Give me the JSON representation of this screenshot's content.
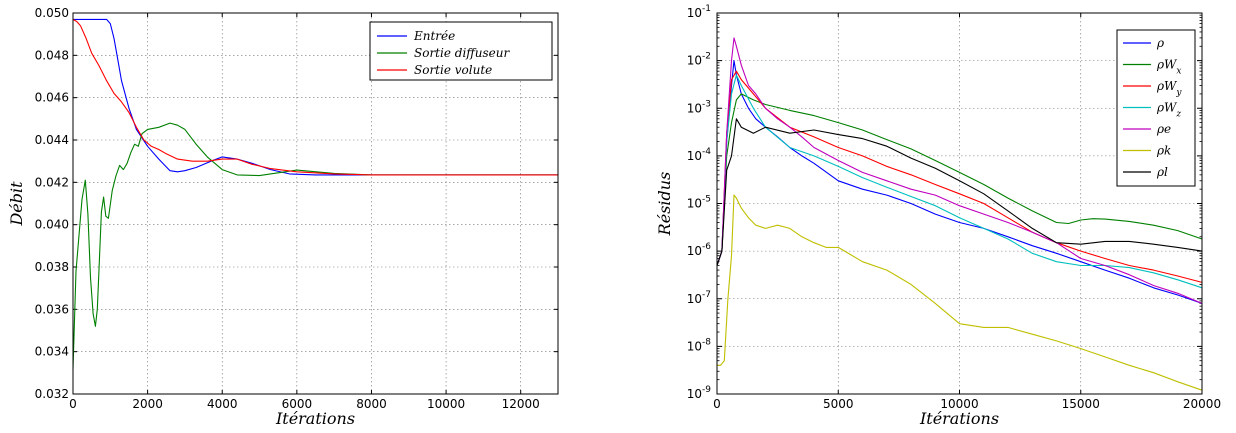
{
  "chart_data": [
    {
      "type": "line",
      "title": "",
      "xlabel": "Itérations",
      "ylabel": "Débit",
      "xlim": [
        0,
        13000
      ],
      "ylim": [
        0.032,
        0.05
      ],
      "xticks": [
        "0",
        "2000",
        "4000",
        "6000",
        "8000",
        "10000",
        "12000"
      ],
      "yticks": [
        "0.032",
        "0.034",
        "0.036",
        "0.038",
        "0.040",
        "0.042",
        "0.044",
        "0.046",
        "0.048",
        "0.050"
      ],
      "grid": true,
      "legend_position": "top-right",
      "series": [
        {
          "name": "Entrée",
          "color": "#0000ff",
          "x": [
            0,
            600,
            900,
            1000,
            1100,
            1200,
            1300,
            1500,
            1700,
            2000,
            2300,
            2600,
            2800,
            3000,
            3300,
            3700,
            4000,
            4400,
            4800,
            5300,
            5800,
            6500,
            8000,
            10000,
            13000
          ],
          "y": [
            0.0497,
            0.0497,
            0.0497,
            0.0495,
            0.0488,
            0.0478,
            0.0468,
            0.0455,
            0.0445,
            0.0437,
            0.0431,
            0.04255,
            0.0425,
            0.04255,
            0.0427,
            0.043,
            0.0432,
            0.0431,
            0.0429,
            0.0426,
            0.0424,
            0.04235,
            0.04235,
            0.04235,
            0.04235
          ]
        },
        {
          "name": "Sortie diffuseur",
          "color": "#008000",
          "x": [
            0,
            80,
            160,
            240,
            330,
            400,
            470,
            540,
            600,
            650,
            700,
            760,
            820,
            880,
            950,
            1050,
            1150,
            1250,
            1350,
            1450,
            1550,
            1650,
            1750,
            1850,
            2000,
            2300,
            2600,
            2800,
            3000,
            3300,
            3600,
            4000,
            4400,
            5000,
            6000,
            7000,
            8000,
            10000,
            13000
          ],
          "y": [
            0.0332,
            0.0378,
            0.0395,
            0.0412,
            0.0421,
            0.0405,
            0.0375,
            0.0358,
            0.0352,
            0.036,
            0.038,
            0.0406,
            0.0413,
            0.0404,
            0.0403,
            0.0416,
            0.0423,
            0.0428,
            0.0426,
            0.0429,
            0.0434,
            0.0438,
            0.0437,
            0.0443,
            0.0445,
            0.0446,
            0.0448,
            0.0447,
            0.0445,
            0.0438,
            0.0432,
            0.0426,
            0.04235,
            0.04232,
            0.04258,
            0.04242,
            0.04235,
            0.04235,
            0.04235
          ]
        },
        {
          "name": "Sortie volute",
          "color": "#ff0000",
          "x": [
            0,
            100,
            200,
            350,
            500,
            700,
            900,
            1100,
            1300,
            1500,
            1700,
            1900,
            2100,
            2300,
            2500,
            2800,
            3200,
            3600,
            4000,
            4400,
            4800,
            5300,
            6000,
            7000,
            8000,
            10000,
            13000
          ],
          "y": [
            0.0497,
            0.0496,
            0.0494,
            0.0488,
            0.0481,
            0.0475,
            0.0468,
            0.0462,
            0.0458,
            0.0453,
            0.0446,
            0.044,
            0.0437,
            0.04355,
            0.04335,
            0.0431,
            0.043,
            0.043,
            0.0431,
            0.0431,
            0.04285,
            0.04265,
            0.0425,
            0.0424,
            0.04235,
            0.04235,
            0.04235
          ]
        }
      ]
    },
    {
      "type": "line",
      "title": "",
      "xlabel": "Itérations",
      "ylabel": "Résidus",
      "xscale": "linear",
      "yscale": "log",
      "xlim": [
        0,
        20000
      ],
      "ylim": [
        1e-09,
        0.1
      ],
      "xticks": [
        "0",
        "5000",
        "10000",
        "15000",
        "20000"
      ],
      "ytick_exponents": [
        "-9",
        "-8",
        "-7",
        "-6",
        "-5",
        "-4",
        "-3",
        "-2",
        "-1"
      ],
      "ytick_base": "10",
      "grid": true,
      "legend_position": "top-right",
      "series": [
        {
          "name": "ρ",
          "color": "#0000ff",
          "x": [
            0,
            200,
            400,
            600,
            700,
            800,
            1000,
            1300,
            1600,
            2000,
            2500,
            3000,
            3500,
            4000,
            5000,
            6000,
            7000,
            8000,
            9000,
            10000,
            11000,
            12000,
            13000,
            14000,
            15000,
            16000,
            17000,
            18000,
            19000,
            20000
          ],
          "y": [
            5e-07,
            1e-06,
            0.0002,
            0.003,
            0.01,
            0.005,
            0.002,
            0.001,
            0.0006,
            0.0004,
            0.00025,
            0.00015,
            0.0001,
            7e-05,
            3e-05,
            2e-05,
            1.5e-05,
            1e-05,
            6e-06,
            4e-06,
            3e-06,
            2e-06,
            1.3e-06,
            9e-07,
            6e-07,
            4e-07,
            2.7e-07,
            1.7e-07,
            1.2e-07,
            8e-08
          ]
        },
        {
          "name": "ρW_x",
          "color": "#008000",
          "x": [
            0,
            200,
            400,
            600,
            800,
            1000,
            1500,
            2000,
            3000,
            4000,
            5000,
            6000,
            7000,
            8000,
            9000,
            10000,
            11000,
            12000,
            13000,
            14000,
            14500,
            15000,
            15500,
            16000,
            17000,
            18000,
            19000,
            20000
          ],
          "y": [
            5e-07,
            1e-06,
            0.0001,
            0.0005,
            0.0015,
            0.002,
            0.0015,
            0.0012,
            0.0009,
            0.0007,
            0.0005,
            0.00035,
            0.00022,
            0.00014,
            8e-05,
            4.5e-05,
            2.5e-05,
            1.3e-05,
            7e-06,
            4e-06,
            3.8e-06,
            4.5e-06,
            4.8e-06,
            4.7e-06,
            4.2e-06,
            3.5e-06,
            2.7e-06,
            1.8e-06
          ]
        },
        {
          "name": "ρW_y",
          "color": "#ff0000",
          "x": [
            0,
            200,
            400,
            600,
            800,
            1000,
            1500,
            2000,
            3000,
            4000,
            5000,
            6000,
            7000,
            8000,
            9000,
            10000,
            11000,
            12000,
            13000,
            14000,
            15000,
            16000,
            17000,
            18000,
            19000,
            20000
          ],
          "y": [
            5e-07,
            1e-06,
            0.0003,
            0.004,
            0.006,
            0.004,
            0.002,
            0.001,
            0.0004,
            0.00025,
            0.00015,
            0.0001,
            6e-05,
            4e-05,
            2.5e-05,
            1.6e-05,
            1e-05,
            5e-06,
            2.5e-06,
            1.5e-06,
            1e-06,
            7e-07,
            5e-07,
            4e-07,
            3e-07,
            2.2e-07
          ]
        },
        {
          "name": "ρW_z",
          "color": "#00bfbf",
          "x": [
            0,
            200,
            400,
            600,
            800,
            1000,
            1500,
            2000,
            3000,
            4000,
            5000,
            6000,
            7000,
            8000,
            9000,
            10000,
            11000,
            12000,
            13000,
            14000,
            15000,
            16000,
            17000,
            18000,
            19000,
            20000
          ],
          "y": [
            5e-07,
            1e-06,
            0.0002,
            0.002,
            0.005,
            0.003,
            0.001,
            0.0004,
            0.00015,
            0.0001,
            6e-05,
            3.5e-05,
            2.2e-05,
            1.4e-05,
            9e-06,
            5e-06,
            3e-06,
            1.8e-06,
            9e-07,
            6e-07,
            5e-07,
            5e-07,
            4.5e-07,
            3.5e-07,
            2.5e-07,
            1.7e-07
          ]
        },
        {
          "name": "ρe",
          "color": "#bf00bf",
          "x": [
            0,
            200,
            400,
            600,
            700,
            800,
            1000,
            1300,
            1600,
            2000,
            2500,
            3000,
            3500,
            4000,
            5000,
            6000,
            7000,
            8000,
            9000,
            10000,
            11000,
            12000,
            13000,
            14000,
            15000,
            16000,
            17000,
            18000,
            19000,
            20000
          ],
          "y": [
            5e-07,
            1e-06,
            0.0003,
            0.01,
            0.03,
            0.02,
            0.008,
            0.003,
            0.002,
            0.001,
            0.0006,
            0.0004,
            0.00025,
            0.00015,
            8e-05,
            4.5e-05,
            3e-05,
            2e-05,
            1.5e-05,
            9e-06,
            6e-06,
            4e-06,
            2.5e-06,
            1.5e-06,
            7e-07,
            5e-07,
            3.2e-07,
            1.9e-07,
            1.3e-07,
            8e-08
          ]
        },
        {
          "name": "ρk",
          "color": "#bfbf00",
          "x": [
            0,
            150,
            300,
            450,
            600,
            700,
            800,
            1000,
            1300,
            1600,
            2000,
            2500,
            3000,
            3500,
            4000,
            4500,
            5000,
            6000,
            7000,
            8000,
            9000,
            10000,
            11000,
            12000,
            13000,
            14000,
            15000,
            16000,
            17000,
            18000,
            19000,
            20000
          ],
          "y": [
            4e-09,
            4e-09,
            5e-09,
            1e-07,
            8e-07,
            1.5e-05,
            1.3e-05,
            8e-06,
            5e-06,
            3.5e-06,
            3e-06,
            3.5e-06,
            3e-06,
            2e-06,
            1.5e-06,
            1.2e-06,
            1.2e-06,
            6e-07,
            4e-07,
            2e-07,
            8e-08,
            3e-08,
            2.5e-08,
            2.5e-08,
            1.8e-08,
            1.3e-08,
            9e-09,
            6e-09,
            4e-09,
            2.8e-09,
            1.8e-09,
            1.2e-09
          ]
        },
        {
          "name": "ρl",
          "color": "#000000",
          "x": [
            0,
            200,
            400,
            600,
            800,
            1000,
            1500,
            2000,
            3000,
            4000,
            5000,
            6000,
            7000,
            8000,
            9000,
            10000,
            11000,
            12000,
            13000,
            14000,
            15000,
            16000,
            17000,
            18000,
            19000,
            20000
          ],
          "y": [
            5e-07,
            1e-06,
            5e-05,
            0.0001,
            0.0006,
            0.0004,
            0.0003,
            0.0004,
            0.0003,
            0.00035,
            0.00028,
            0.00023,
            0.00016,
            9e-05,
            5.5e-05,
            3e-05,
            1.6e-05,
            7e-06,
            3e-06,
            1.5e-06,
            1.4e-06,
            1.6e-06,
            1.6e-06,
            1.4e-06,
            1.2e-06,
            1e-06
          ]
        }
      ]
    }
  ]
}
